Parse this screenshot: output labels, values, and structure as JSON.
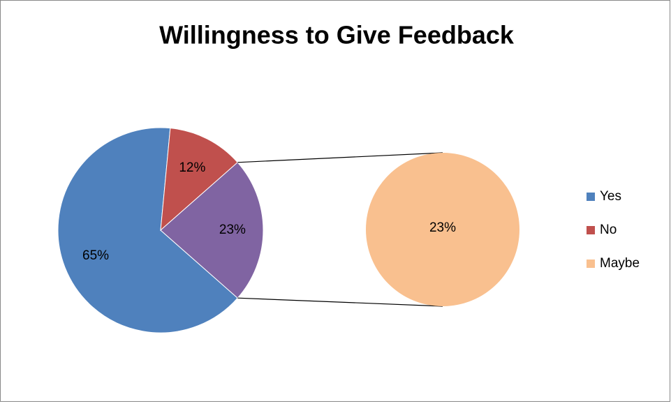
{
  "chart_data": {
    "type": "pie_of_pie",
    "title": "Willingness to Give Feedback",
    "categories": [
      "Yes",
      "No",
      "Maybe"
    ],
    "values": [
      65,
      12,
      23
    ],
    "value_labels": [
      "65%",
      "12%",
      "23%"
    ],
    "colors": [
      "#4f81bd",
      "#c0504d",
      "#f9c08f"
    ],
    "secondary_count": 1,
    "other": {
      "value": 23,
      "label": "23%",
      "color": "#8064a2"
    },
    "legend": "right"
  }
}
